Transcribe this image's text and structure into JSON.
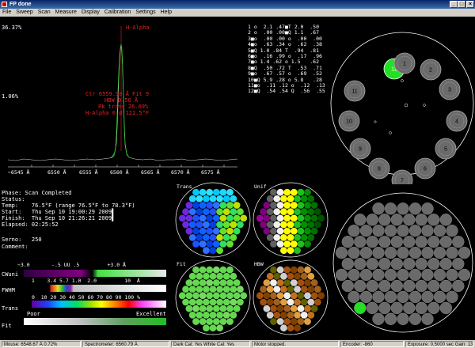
{
  "window": {
    "title": "FP done",
    "minimize": "_",
    "restore": "□",
    "close": "×"
  },
  "menu": [
    "File",
    "Sweep",
    "Scan",
    "Measure",
    "Display",
    "Calibration",
    "Settings",
    "Help"
  ],
  "spectrum": {
    "top_pct": "36.37%",
    "mid_pct": "1.06%",
    "peak_label": "H-Alpha",
    "annotation": [
      "Ctr 6559.90 Å Fit 9",
      "HBW 0.56 Å",
      "Pk trans 26.69%",
      "H-Alpha 0 @ 122.5°F"
    ],
    "x_ticks": [
      "−6545 Å",
      "6550 Å",
      "6555 Å",
      "6560 Å",
      "6565 Å",
      "6570 Å",
      "6575 Å"
    ]
  },
  "table": [
    "1 o  2.1 .47■T 2.0  .50",
    "2 o  .00 .00■Q 1.1  .67",
    "3■o  .00 .00 o  .00  .00",
    "4■o  .63 .34 o  .62  .38",
    "5■Q 1.0 .84 T  .94  .81",
    "6■o  .16 .99 o  .17  .96",
    "7■o 1.4 .62 o 1.5   .62",
    "8■Q  .50 .72 T  .53  .71",
    "9■o  .67 .57 o  .69  .52",
    "10■Q 5.9 .28 o 5.8   .28",
    "11■o  .11 .12 o  .12  .13",
    "12■Q  .54 .54 Q  .56  .55"
  ],
  "info": {
    "phase": "Phase: Scan Completed",
    "status": "Status:",
    "temp": "Temp:    76.5°F (range 76.5°F to 78.3°F)",
    "start": "Start:   Thu Sep 10 19:00:29 2009▌",
    "finish": "Finish:  Thu Sep 10 21:26:21 2009▌",
    "elapsed": "Elapsed: 02:25:52",
    "serno": "Serno:   250",
    "comment": "Comment:"
  },
  "scales": {
    "cwuni_label": "CWuni",
    "cwuni_ticks": "−3.0       -.5 UU .5         +3.0 Å",
    "fwhm_label": "FWHM",
    "fwhm_ticks": "  1    3.4 5.7 1.0  2.0         10  Å",
    "trans_label": "Trans",
    "trans_ticks": "0  10 20 30 40 50 60 70 80 90 100 %",
    "fit_label": "Fit",
    "fit_poor": "Poor",
    "fit_excellent": "Excellent"
  },
  "maps": {
    "trans": "Trans",
    "unif": "Unif",
    "fit": "Fit",
    "hbw": "HBW"
  },
  "wheel": {
    "selected": "12",
    "numbers": [
      "1",
      "2",
      "3",
      "4",
      "5",
      "6",
      "7",
      "8",
      "9",
      "10",
      "11",
      "12"
    ]
  },
  "statusbar": {
    "mouse": "Mouse: 6548.67 Å  0.72%",
    "spectrometer": "Spectrometer: 6560.79 Å",
    "cal": "Dark Cal: Yes  White Cal: Yes",
    "motor": "Motor stopped.",
    "encoder": "Encoder: -860",
    "exposure": "Exposure: 0.5000 sec  Gain: 13.4dB"
  }
}
